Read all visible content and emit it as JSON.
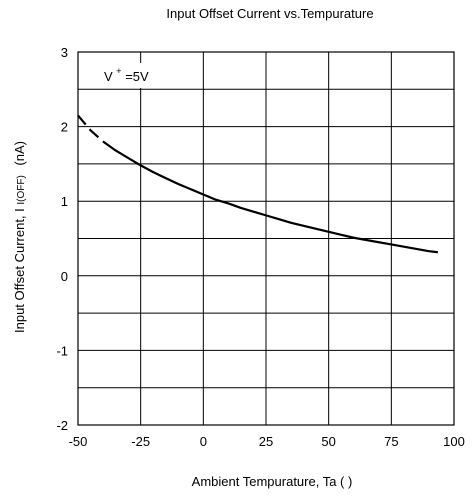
{
  "chart_data": {
    "type": "line",
    "title": "Input Offset Current vs.Tempurature",
    "xlabel": "Ambient Tempurature, Ta (   )",
    "ylabel": "Input Offset Current, I",
    "ylabel_subscript": "I(OFF)",
    "ylabel_unit": "(nA)",
    "xlim": [
      -50,
      100
    ],
    "ylim": [
      -2,
      3
    ],
    "xticks": [
      -50,
      -25,
      0,
      25,
      50,
      75,
      100
    ],
    "yticks": [
      -2,
      -1,
      0,
      1,
      2,
      3
    ],
    "grid": true,
    "annotation": {
      "text": "V",
      "superscript": "+",
      "suffix": "=5V"
    },
    "series": [
      {
        "x": [
          -50,
          -45,
          -40,
          -35,
          -30,
          -25,
          -20,
          -15,
          -10,
          -5,
          0,
          5,
          10,
          15,
          20,
          25,
          30,
          35,
          40,
          45,
          50,
          55,
          60,
          65,
          70,
          75,
          80,
          85,
          90,
          95
        ],
        "values": [
          2.15,
          1.95,
          1.8,
          1.68,
          1.58,
          1.48,
          1.39,
          1.31,
          1.23,
          1.16,
          1.09,
          1.02,
          0.97,
          0.91,
          0.86,
          0.81,
          0.76,
          0.71,
          0.67,
          0.63,
          0.59,
          0.55,
          0.51,
          0.48,
          0.45,
          0.42,
          0.39,
          0.36,
          0.33,
          0.31
        ],
        "color": "#000000",
        "style": "solid with dashed ends"
      }
    ]
  }
}
